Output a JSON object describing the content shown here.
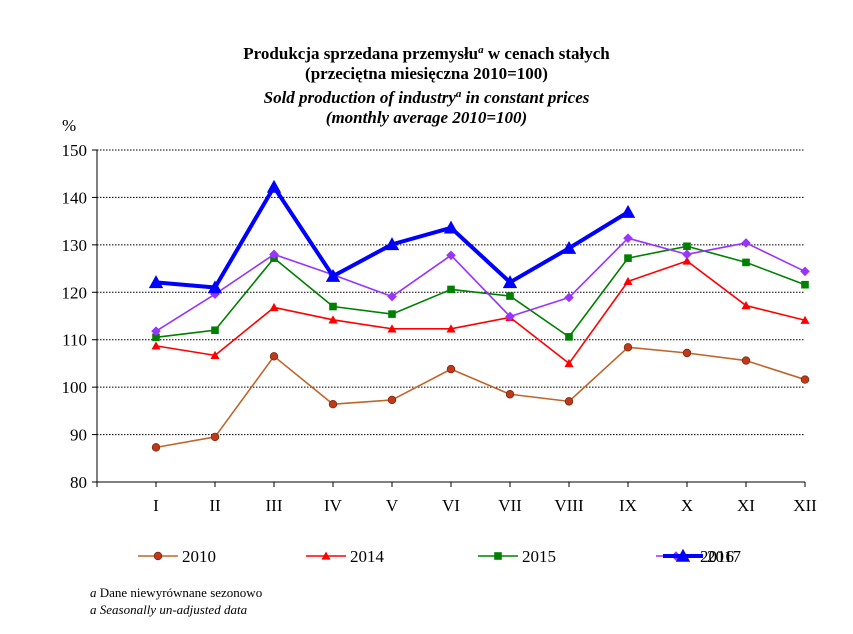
{
  "title": {
    "pl_main": "Produkcja sprzedana przemysłu",
    "pl_sup": "a",
    "pl_tail": " w cenach stałych",
    "pl_sub": "(przeciętna miesięczna 2010=100)",
    "en_main": "Sold production of industry",
    "en_sup": "a",
    "en_tail": " in constant prices",
    "en_sub": "(monthly average 2010=100)"
  },
  "footnotes": {
    "pl_marker": "a",
    "pl_text": " Dane niewyrównane sezonowo",
    "en_marker": "a",
    "en_text": " Seasonally un-adjusted data"
  },
  "chart_data": {
    "type": "line",
    "ylabel": "%",
    "ylim": [
      80,
      150
    ],
    "yticks": [
      80,
      90,
      100,
      110,
      120,
      130,
      140,
      150
    ],
    "grid": "horizontal dotted",
    "legend_position": "bottom",
    "categories": [
      "I",
      "II",
      "III",
      "IV",
      "V",
      "VI",
      "VII",
      "VIII",
      "IX",
      "X",
      "XI",
      "XII"
    ],
    "series": [
      {
        "name": "2010",
        "color": "#C0652A",
        "marker": "circle",
        "values": [
          87.3,
          89.5,
          106.5,
          96.4,
          97.3,
          103.8,
          98.5,
          97.0,
          108.4,
          107.2,
          105.6,
          101.6
        ]
      },
      {
        "name": "2014",
        "color": "#FF0000",
        "marker": "triangle",
        "values": [
          108.7,
          106.7,
          116.8,
          114.2,
          112.3,
          112.3,
          114.7,
          105.0,
          122.3,
          126.6,
          117.2,
          114.1
        ]
      },
      {
        "name": "2015",
        "color": "#008000",
        "marker": "square",
        "values": [
          110.5,
          112.0,
          127.2,
          117.0,
          115.4,
          120.6,
          119.2,
          110.6,
          127.2,
          129.7,
          126.3,
          121.6
        ]
      },
      {
        "name": "2016",
        "color": "#9933FF",
        "marker": "diamond",
        "values": [
          111.8,
          119.6,
          128.0,
          123.7,
          119.1,
          127.8,
          114.9,
          118.9,
          131.4,
          128.0,
          130.4,
          124.4
        ]
      },
      {
        "name": "2017",
        "color": "#0000FF",
        "marker": "triangle",
        "bold": true,
        "values": [
          122.1,
          121.0,
          142.2,
          123.4,
          130.1,
          133.6,
          122.1,
          129.3,
          136.9,
          null,
          null,
          null
        ]
      }
    ]
  }
}
